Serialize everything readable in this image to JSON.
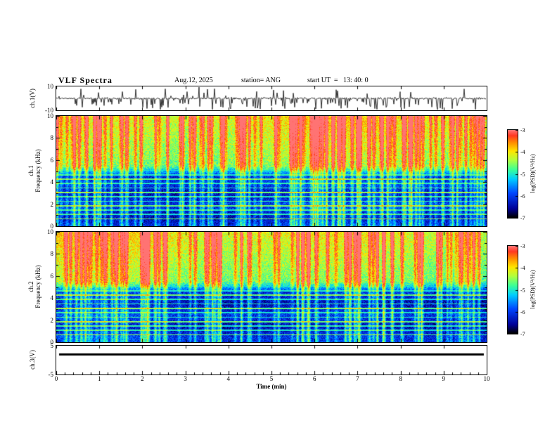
{
  "header": {
    "title": "VLF Spectra",
    "date": "Aug.12, 2025",
    "station": "station= ANG",
    "start_ut": "start UT  =   13: 40: 0"
  },
  "xaxis": {
    "label": "Time (min)",
    "min": 0,
    "max": 10,
    "ticks": [
      "0",
      "1",
      "2",
      "3",
      "4",
      "5",
      "6",
      "7",
      "8",
      "9",
      "10"
    ],
    "minor_tick_step_min": 0.2
  },
  "colorbar": {
    "label": "log(PSD)(V²/Hz)",
    "ticks": [
      "-3",
      "-4",
      "-5",
      "-6",
      "-7"
    ],
    "vmin": -7,
    "vmax": -3,
    "colormap": "jet"
  },
  "chart_data": [
    {
      "type": "line",
      "name": "ch1-waveform",
      "ylabel": "ch.1(V)",
      "ylim": [
        -10,
        10
      ],
      "yticks": [
        "10",
        "-10"
      ],
      "description": "Broadband VLF receiver channel-1 voltage over 10 minutes: continuous noise band of roughly ±1 V about 0 V with many impulsive sferic spikes, mostly downward, reaching about ±10 V",
      "seed": 11,
      "noise_v": 0.8,
      "n_spikes": 150
    },
    {
      "type": "heatmap",
      "name": "ch1-spectrogram",
      "ylabel": [
        "ch.1",
        "Frequency (kHz)"
      ],
      "ylim": [
        0,
        10
      ],
      "yticks": [
        "0",
        "2",
        "4",
        "6",
        "8",
        "10"
      ],
      "vmin": -7,
      "vmax": -3,
      "description": "0–10 kHz VLF power spectral density over 10 min: yellow/orange band above ~5 kHz with red vertical sferic streaks, blue background below ~5 kHz crossed by green horizontal harmonic lines and cyan vertical streaks",
      "seed": 21,
      "line_freqs_khz": [
        0.7,
        1.1,
        1.5,
        1.9,
        2.3,
        2.7,
        3.1,
        3.5,
        3.9,
        4.3,
        4.7,
        5.1
      ]
    },
    {
      "type": "heatmap",
      "name": "ch2-spectrogram",
      "ylabel": [
        "ch.2",
        "Frequency (kHz)"
      ],
      "ylim": [
        0,
        10
      ],
      "yticks": [
        "0",
        "2",
        "4",
        "6",
        "8",
        "10"
      ],
      "vmin": -7,
      "vmax": -3,
      "description": "Channel-2 spectrogram, same structure as channel 1: bright 5–10 kHz band with red sferic streaks, blue sub-5 kHz region with green horizontal lines",
      "seed": 57,
      "line_freqs_khz": [
        0.7,
        1.1,
        1.5,
        1.9,
        2.3,
        2.7,
        3.1,
        3.5,
        3.9,
        4.3,
        4.7,
        5.1
      ]
    },
    {
      "type": "line",
      "name": "ch3-level",
      "ylabel": "ch.3(V)",
      "ylim": [
        -5,
        5
      ],
      "yticks": [
        "5",
        "-5"
      ],
      "constant_value": 2,
      "description": "Channel-3 voltage: constant level of about 2 V (flat thick black line) for the whole 10 minutes",
      "seed": 3
    }
  ]
}
